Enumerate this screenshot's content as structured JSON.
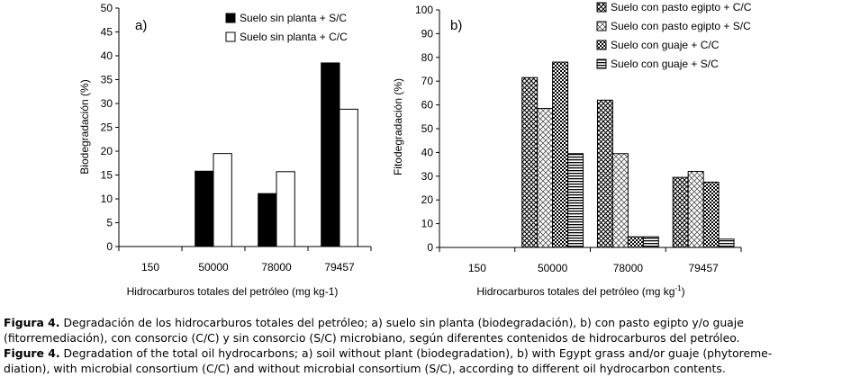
{
  "chart_data": [
    {
      "type": "bar",
      "title": "",
      "panel_label": "a)",
      "xlabel": "Hidrocarburos totales del petróleo (mg kg-1)",
      "ylabel": "Biodegradación (%)",
      "ylim": [
        0,
        50
      ],
      "yticks": [
        "0",
        "5",
        "10",
        "15",
        "20",
        "25",
        "30",
        "35",
        "40",
        "45",
        "50"
      ],
      "categories": [
        "150",
        "50000",
        "78000",
        "79457"
      ],
      "legend_position": "top-right",
      "series": [
        {
          "name": "Suelo sin planta + S/C",
          "fill": "#000000",
          "pattern": "solid",
          "values": [
            0,
            15.8,
            11.1,
            38.5
          ]
        },
        {
          "name": "Suelo sin planta + C/C",
          "fill": "#ffffff",
          "pattern": "empty",
          "values": [
            0,
            19.5,
            15.7,
            28.8
          ]
        }
      ]
    },
    {
      "type": "bar",
      "title": "",
      "panel_label": "b)",
      "xlabel": "Hidrocarburos totales del petróleo (mg kg",
      "xlabel_sup": "-1",
      "xlabel_tail": ")",
      "ylabel": "Fitodegradación (%)",
      "ylim": [
        0,
        100
      ],
      "yticks": [
        "0",
        "10",
        "20",
        "30",
        "40",
        "50",
        "60",
        "70",
        "80",
        "90",
        "100"
      ],
      "categories": [
        "150",
        "50000",
        "78000",
        "79457"
      ],
      "legend_position": "top-right",
      "series": [
        {
          "name": "Suelo con pasto egipto + C/C",
          "pattern": "crosshatch-dense",
          "values": [
            0,
            71.5,
            62.0,
            29.5
          ]
        },
        {
          "name": "Suelo con pasto egipto + S/C",
          "pattern": "crosshatch-light",
          "values": [
            0,
            58.5,
            39.5,
            32.0
          ]
        },
        {
          "name": "Suelo con guaje + C/C",
          "pattern": "checker",
          "values": [
            0,
            78.0,
            4.5,
            27.5
          ]
        },
        {
          "name": "Suelo con guaje + S/C",
          "pattern": "horizontal-lines",
          "values": [
            0,
            39.5,
            4.5,
            3.5
          ]
        }
      ]
    }
  ],
  "caption": {
    "es_label": "Figura 4.",
    "es_line1": "Degradación de los hidrocarburos totales del petróleo; a) suelo sin planta (biodegradación), b) con pasto egipto y/o guaje",
    "es_line2": "(fitorremediación), con consorcio (C/C) y sin consorcio (S/C) microbiano, según diferentes contenidos de hidrocarburos del petróleo.",
    "en_label": "Figure 4.",
    "en_line1": "Degradation of the total oil hydrocarbons; a) soil without plant (biodegradation), b) with Egypt grass and/or guaje (phytoreme-",
    "en_line2": "diation), with microbial consortium (C/C) and without microbial consortium (S/C), according to different oil hydrocarbon contents."
  }
}
